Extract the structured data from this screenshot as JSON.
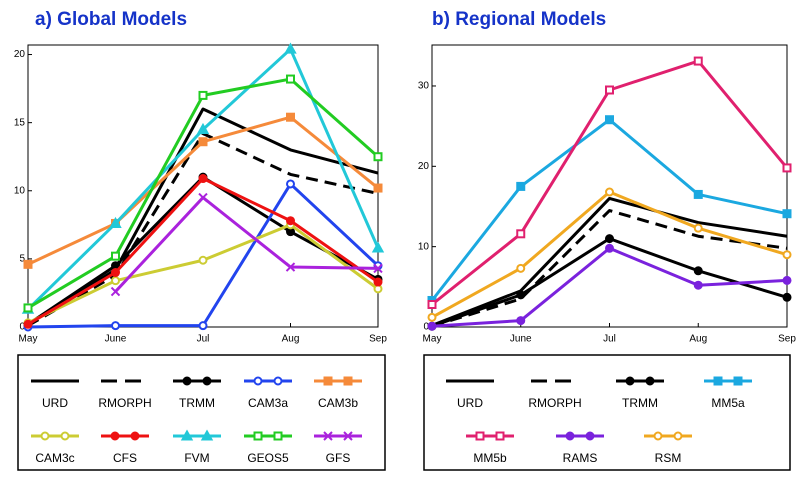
{
  "chart_data": [
    {
      "type": "line",
      "title": "a) Global Models",
      "categories": [
        "May",
        "June",
        "Jul",
        "Aug",
        "Sep"
      ],
      "ylim": [
        0,
        20.7
      ],
      "yticks": [
        0,
        5,
        10,
        15,
        20
      ],
      "series": [
        {
          "name": "URD",
          "color": "#000000",
          "values": [
            0.2,
            4.2,
            16,
            13,
            11.3
          ]
        },
        {
          "name": "RMORPH",
          "color": "#000000",
          "dash": true,
          "values": [
            0.1,
            3.8,
            14.2,
            11.2,
            9.8
          ]
        },
        {
          "name": "TRMM",
          "color": "#000000",
          "marker": "circle",
          "filled": true,
          "values": [
            0.2,
            4.5,
            11,
            7,
            3.5
          ]
        },
        {
          "name": "CAM3a",
          "color": "#2244ee",
          "marker": "circle",
          "values": [
            0,
            0.1,
            0.1,
            10.5,
            4.5
          ]
        },
        {
          "name": "CAM3b",
          "color": "#f58a3a",
          "marker": "square",
          "filled": true,
          "values": [
            4.6,
            7.6,
            13.6,
            15.4,
            10.2
          ]
        },
        {
          "name": "CAM3c",
          "color": "#cccc33",
          "marker": "circle",
          "values": [
            0.3,
            3.4,
            4.9,
            7.5,
            2.8
          ]
        },
        {
          "name": "CFS",
          "color": "#ee1111",
          "marker": "circle",
          "filled": true,
          "values": [
            0.2,
            4,
            10.9,
            7.8,
            3.3
          ]
        },
        {
          "name": "FVM",
          "color": "#22c8d8",
          "marker": "triangle",
          "filled": true,
          "values": [
            1.3,
            7.6,
            14.5,
            20.4,
            5.8
          ]
        },
        {
          "name": "GEOS5",
          "color": "#22cc22",
          "marker": "square",
          "values": [
            1.4,
            5.2,
            17,
            18.2,
            12.5
          ]
        },
        {
          "name": "GFS",
          "color": "#aa22dd",
          "marker": "x",
          "values": [
            null,
            2.6,
            9.5,
            4.4,
            4.3
          ]
        }
      ]
    },
    {
      "type": "line",
      "title": "b) Regional Models",
      "categories": [
        "May",
        "June",
        "Jul",
        "Aug",
        "Sep"
      ],
      "ylim": [
        0,
        35.1
      ],
      "yticks": [
        0,
        10,
        20,
        30
      ],
      "series": [
        {
          "name": "URD",
          "color": "#000000",
          "values": [
            0.2,
            4.5,
            16,
            13,
            11.3
          ]
        },
        {
          "name": "RMORPH",
          "color": "#000000",
          "dash": true,
          "values": [
            0.1,
            3.5,
            14.5,
            11.3,
            9.8
          ]
        },
        {
          "name": "TRMM",
          "color": "#000000",
          "marker": "circle",
          "filled": true,
          "values": [
            0.1,
            4,
            11,
            7,
            3.7
          ]
        },
        {
          "name": "MM5a",
          "color": "#1ba8e0",
          "marker": "square",
          "filled": true,
          "values": [
            3.3,
            17.5,
            25.8,
            16.5,
            14.1
          ]
        },
        {
          "name": "MM5b",
          "color": "#e0206e",
          "marker": "square",
          "values": [
            2.8,
            11.6,
            29.5,
            33.1,
            19.8
          ]
        },
        {
          "name": "RAMS",
          "color": "#7a22dd",
          "marker": "circle",
          "filled": true,
          "values": [
            0.1,
            0.8,
            9.8,
            5.2,
            5.8
          ]
        },
        {
          "name": "RSM",
          "color": "#f0a820",
          "marker": "circle",
          "values": [
            1.2,
            7.3,
            16.8,
            12.3,
            9
          ]
        }
      ]
    }
  ]
}
